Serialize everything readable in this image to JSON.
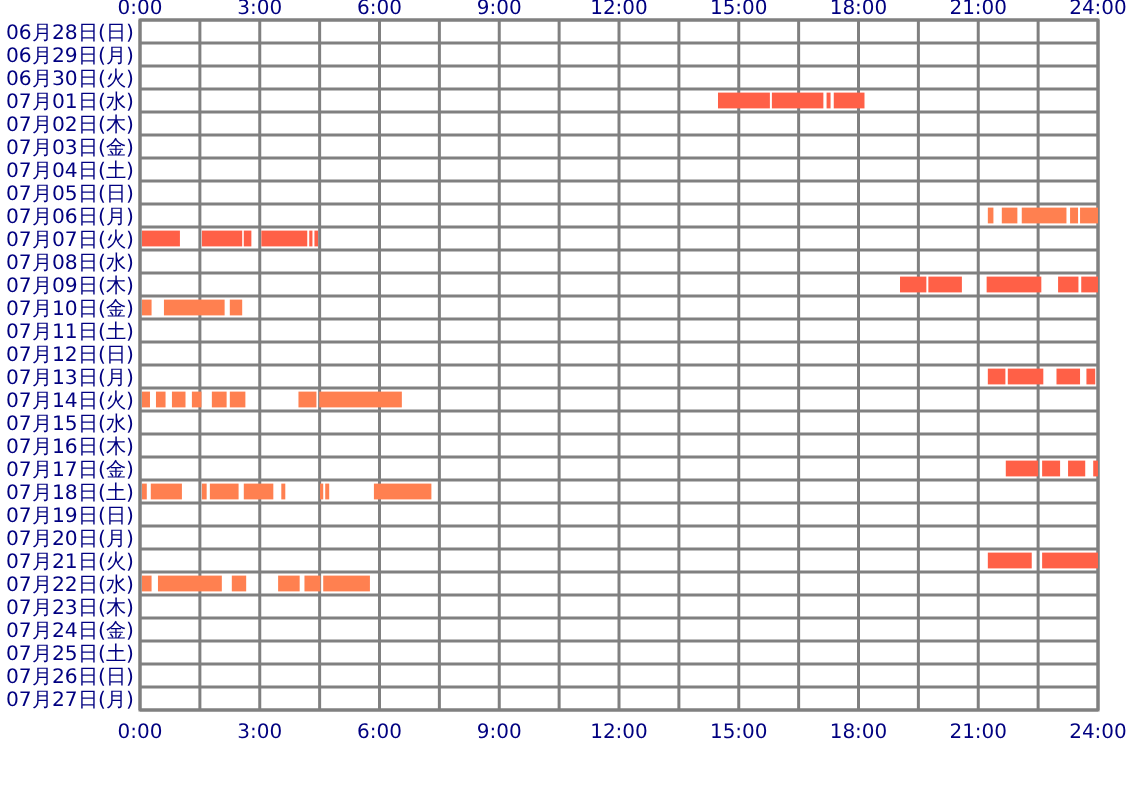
{
  "chart_data": {
    "type": "bar",
    "orientation": "horizontal",
    "grid": true,
    "categories": [
      "06月28日(日)",
      "06月29日(月)",
      "06月30日(火)",
      "07月01日(水)",
      "07月02日(木)",
      "07月03日(金)",
      "07月04日(土)",
      "07月05日(日)",
      "07月06日(月)",
      "07月07日(火)",
      "07月08日(水)",
      "07月09日(木)",
      "07月10日(金)",
      "07月11日(土)",
      "07月12日(日)",
      "07月13日(月)",
      "07月14日(火)",
      "07月15日(水)",
      "07月16日(木)",
      "07月17日(金)",
      "07月18日(土)",
      "07月19日(日)",
      "07月20日(月)",
      "07月21日(火)",
      "07月22日(水)",
      "07月23日(木)",
      "07月24日(金)",
      "07月25日(土)",
      "07月26日(日)",
      "07月27日(月)"
    ],
    "xlim": [
      0,
      24
    ],
    "xticks": [
      {
        "value": 0,
        "label": "0:00"
      },
      {
        "value": 1.5,
        "label": null
      },
      {
        "value": 3,
        "label": "3:00"
      },
      {
        "value": 4.5,
        "label": null
      },
      {
        "value": 6,
        "label": "6:00"
      },
      {
        "value": 7.5,
        "label": null
      },
      {
        "value": 9,
        "label": "9:00"
      },
      {
        "value": 10.5,
        "label": null
      },
      {
        "value": 12,
        "label": "12:00"
      },
      {
        "value": 13.5,
        "label": null
      },
      {
        "value": 15,
        "label": "15:00"
      },
      {
        "value": 16.5,
        "label": null
      },
      {
        "value": 18,
        "label": "18:00"
      },
      {
        "value": 19.5,
        "label": null
      },
      {
        "value": 21,
        "label": "21:00"
      },
      {
        "value": 22.5,
        "label": null
      },
      {
        "value": 24,
        "label": "24:00"
      }
    ],
    "x2lim": [
      0,
      24
    ],
    "x2ticks": [
      {
        "value": 0,
        "label": "0:00"
      },
      {
        "value": 1.5,
        "label": null
      },
      {
        "value": 3,
        "label": "3:00"
      },
      {
        "value": 4.5,
        "label": null
      },
      {
        "value": 6,
        "label": "6:00"
      },
      {
        "value": 7.5,
        "label": null
      },
      {
        "value": 9,
        "label": "9:00"
      },
      {
        "value": 10.5,
        "label": null
      },
      {
        "value": 12,
        "label": "12:00"
      },
      {
        "value": 13.5,
        "label": null
      },
      {
        "value": 15,
        "label": "15:00"
      },
      {
        "value": 16.5,
        "label": null
      },
      {
        "value": 18,
        "label": "18:00"
      },
      {
        "value": 19.5,
        "label": null
      },
      {
        "value": 21,
        "label": "21:00"
      },
      {
        "value": 22.5,
        "label": null
      },
      {
        "value": 24,
        "label": "24:00"
      }
    ],
    "series": [
      {
        "base": [
          null,
          null,
          null,
          14.48,
          null,
          null,
          null,
          null,
          21.24,
          0.05,
          null,
          19.04,
          0.05,
          null,
          null,
          21.24,
          0.05,
          null,
          null,
          21.69,
          0.05,
          null,
          null,
          21.24,
          0.05,
          null,
          null,
          null,
          null,
          null
        ],
        "values": [
          null,
          null,
          null,
          1.3,
          null,
          null,
          null,
          null,
          0.14,
          0.95,
          null,
          0.66,
          0.24,
          null,
          null,
          0.44,
          0.2,
          null,
          null,
          0.81,
          0.12,
          null,
          null,
          1.1,
          0.24,
          null,
          null,
          null,
          null,
          null
        ],
        "colors": [
          null,
          null,
          null,
          "#ff6047",
          null,
          null,
          null,
          null,
          "#ff8050",
          "#ff6047",
          null,
          "#ff6047",
          "#ff8050",
          null,
          null,
          "#ff6047",
          "#ff8050",
          null,
          null,
          "#ff6047",
          "#ff8050",
          null,
          null,
          "#ff6047",
          "#ff8050",
          null,
          null,
          null,
          null,
          null
        ]
      },
      {
        "base": [
          null,
          null,
          null,
          15.83,
          null,
          null,
          null,
          null,
          21.59,
          1.55,
          null,
          19.75,
          0.6,
          null,
          null,
          21.74,
          0.4,
          null,
          null,
          22.6,
          0.27,
          null,
          null,
          22.6,
          0.45,
          null,
          null,
          null,
          null,
          null
        ],
        "values": [
          null,
          null,
          null,
          1.29,
          null,
          null,
          null,
          null,
          0.39,
          1.01,
          null,
          0.84,
          1.52,
          null,
          null,
          0.89,
          0.24,
          null,
          null,
          0.45,
          0.78,
          null,
          null,
          1.4,
          1.6,
          null,
          null,
          null,
          null,
          null
        ],
        "colors": [
          null,
          null,
          null,
          "#ff6047",
          null,
          null,
          null,
          null,
          "#ff8050",
          "#ff6047",
          null,
          "#ff6047",
          "#ff8050",
          null,
          null,
          "#ff6047",
          "#ff8050",
          null,
          null,
          "#ff6047",
          "#ff8050",
          null,
          null,
          "#ff6047",
          "#ff8050",
          null,
          null,
          null,
          null,
          null
        ]
      },
      {
        "base": [
          null,
          null,
          null,
          17.2,
          null,
          null,
          null,
          null,
          22.09,
          2.6,
          null,
          21.21,
          2.25,
          null,
          null,
          22.96,
          0.8,
          null,
          null,
          23.25,
          1.55,
          null,
          null,
          null,
          2.3,
          null,
          null,
          null,
          null,
          null
        ],
        "values": [
          null,
          null,
          null,
          0.1,
          null,
          null,
          null,
          null,
          1.12,
          0.19,
          null,
          1.37,
          0.31,
          null,
          null,
          0.59,
          0.34,
          null,
          null,
          0.43,
          0.12,
          null,
          null,
          null,
          0.36,
          null,
          null,
          null,
          null,
          null
        ],
        "colors": [
          null,
          null,
          null,
          "#ff6047",
          null,
          null,
          null,
          null,
          "#ff8050",
          "#ff6047",
          null,
          "#ff6047",
          "#ff8050",
          null,
          null,
          "#ff6047",
          "#ff8050",
          null,
          null,
          "#ff6047",
          "#ff8050",
          null,
          null,
          null,
          "#ff8050",
          null,
          null,
          null,
          null,
          null
        ]
      },
      {
        "base": [
          null,
          null,
          null,
          17.38,
          null,
          null,
          null,
          null,
          23.3,
          3.04,
          null,
          23.0,
          null,
          null,
          null,
          23.71,
          1.3,
          null,
          null,
          23.88,
          1.75,
          null,
          null,
          null,
          3.46,
          null,
          null,
          null,
          null,
          null
        ],
        "values": [
          null,
          null,
          null,
          0.77,
          null,
          null,
          null,
          null,
          0.2,
          1.15,
          null,
          0.51,
          null,
          null,
          null,
          0.22,
          0.24,
          null,
          null,
          0.12,
          0.72,
          null,
          null,
          null,
          0.54,
          null,
          null,
          null,
          null,
          null
        ],
        "colors": [
          null,
          null,
          null,
          "#ff6047",
          null,
          null,
          null,
          null,
          "#ff8050",
          "#ff6047",
          null,
          "#ff6047",
          null,
          null,
          null,
          "#ff6047",
          "#ff8050",
          null,
          null,
          "#ff6047",
          "#ff8050",
          null,
          null,
          null,
          "#ff8050",
          null,
          null,
          null,
          null,
          null
        ]
      },
      {
        "base": [
          null,
          null,
          null,
          null,
          null,
          null,
          null,
          null,
          23.55,
          4.24,
          null,
          23.58,
          null,
          null,
          null,
          null,
          1.8,
          null,
          null,
          null,
          2.6,
          null,
          null,
          null,
          4.12,
          null,
          null,
          null,
          null,
          null
        ],
        "values": [
          null,
          null,
          null,
          null,
          null,
          null,
          null,
          null,
          0.45,
          0.08,
          null,
          0.42,
          null,
          null,
          null,
          null,
          0.37,
          null,
          null,
          null,
          0.74,
          null,
          null,
          null,
          0.4,
          null,
          null,
          null,
          null,
          null
        ],
        "colors": [
          null,
          null,
          null,
          null,
          null,
          null,
          null,
          null,
          "#ff8050",
          "#ff6047",
          null,
          "#ff6047",
          null,
          null,
          null,
          null,
          "#ff8050",
          null,
          null,
          null,
          "#ff8050",
          null,
          null,
          null,
          "#ff8050",
          null,
          null,
          null,
          null,
          null
        ]
      },
      {
        "base": [
          null,
          null,
          null,
          null,
          null,
          null,
          null,
          null,
          null,
          4.37,
          null,
          null,
          null,
          null,
          null,
          null,
          2.25,
          null,
          null,
          null,
          3.54,
          null,
          null,
          null,
          4.59,
          null,
          null,
          null,
          null,
          null
        ],
        "values": [
          null,
          null,
          null,
          null,
          null,
          null,
          null,
          null,
          null,
          0.09,
          null,
          null,
          null,
          null,
          null,
          null,
          0.39,
          null,
          null,
          null,
          0.1,
          null,
          null,
          null,
          1.17,
          null,
          null,
          null,
          null,
          null
        ],
        "colors": [
          null,
          null,
          null,
          null,
          null,
          null,
          null,
          null,
          null,
          "#ff6047",
          null,
          null,
          null,
          null,
          null,
          null,
          "#ff8050",
          null,
          null,
          null,
          "#ff8050",
          null,
          null,
          null,
          "#ff8050",
          null,
          null,
          null,
          null,
          null
        ]
      },
      {
        "base": [
          null,
          null,
          null,
          null,
          null,
          null,
          null,
          null,
          null,
          null,
          null,
          null,
          null,
          null,
          null,
          null,
          3.97,
          null,
          null,
          null,
          4.51,
          null,
          null,
          null,
          null,
          null,
          null,
          null,
          null,
          null
        ],
        "values": [
          null,
          null,
          null,
          null,
          null,
          null,
          null,
          null,
          null,
          null,
          null,
          null,
          null,
          null,
          null,
          null,
          0.45,
          null,
          null,
          null,
          0.08,
          null,
          null,
          null,
          null,
          null,
          null,
          null,
          null,
          null
        ],
        "colors": [
          null,
          null,
          null,
          null,
          null,
          null,
          null,
          null,
          null,
          null,
          null,
          null,
          null,
          null,
          null,
          null,
          "#ff8050",
          null,
          null,
          null,
          "#ff8050",
          null,
          null,
          null,
          null,
          null,
          null,
          null,
          null,
          null
        ]
      },
      {
        "base": [
          null,
          null,
          null,
          null,
          null,
          null,
          null,
          null,
          null,
          null,
          null,
          null,
          null,
          null,
          null,
          null,
          4.49,
          null,
          null,
          null,
          4.64,
          null,
          null,
          null,
          null,
          null,
          null,
          null,
          null,
          null
        ],
        "values": [
          null,
          null,
          null,
          null,
          null,
          null,
          null,
          null,
          null,
          null,
          null,
          null,
          null,
          null,
          null,
          null,
          2.07,
          null,
          null,
          null,
          0.1,
          null,
          null,
          null,
          null,
          null,
          null,
          null,
          null,
          null
        ],
        "colors": [
          null,
          null,
          null,
          null,
          null,
          null,
          null,
          null,
          null,
          null,
          null,
          null,
          null,
          null,
          null,
          null,
          "#ff8050",
          null,
          null,
          null,
          "#ff8050",
          null,
          null,
          null,
          null,
          null,
          null,
          null,
          null,
          null
        ]
      },
      {
        "base": [
          null,
          null,
          null,
          null,
          null,
          null,
          null,
          null,
          null,
          null,
          null,
          null,
          null,
          null,
          null,
          null,
          null,
          null,
          null,
          null,
          5.86,
          null,
          null,
          null,
          null,
          null,
          null,
          null,
          null,
          null
        ],
        "values": [
          null,
          null,
          null,
          null,
          null,
          null,
          null,
          null,
          null,
          null,
          null,
          null,
          null,
          null,
          null,
          null,
          null,
          null,
          null,
          null,
          1.44,
          null,
          null,
          null,
          null,
          null,
          null,
          null,
          null,
          null
        ],
        "colors": [
          null,
          null,
          null,
          null,
          null,
          null,
          null,
          null,
          null,
          null,
          null,
          null,
          null,
          null,
          null,
          null,
          null,
          null,
          null,
          null,
          "#ff8050",
          null,
          null,
          null,
          null,
          null,
          null,
          null,
          null,
          null
        ]
      }
    ]
  }
}
